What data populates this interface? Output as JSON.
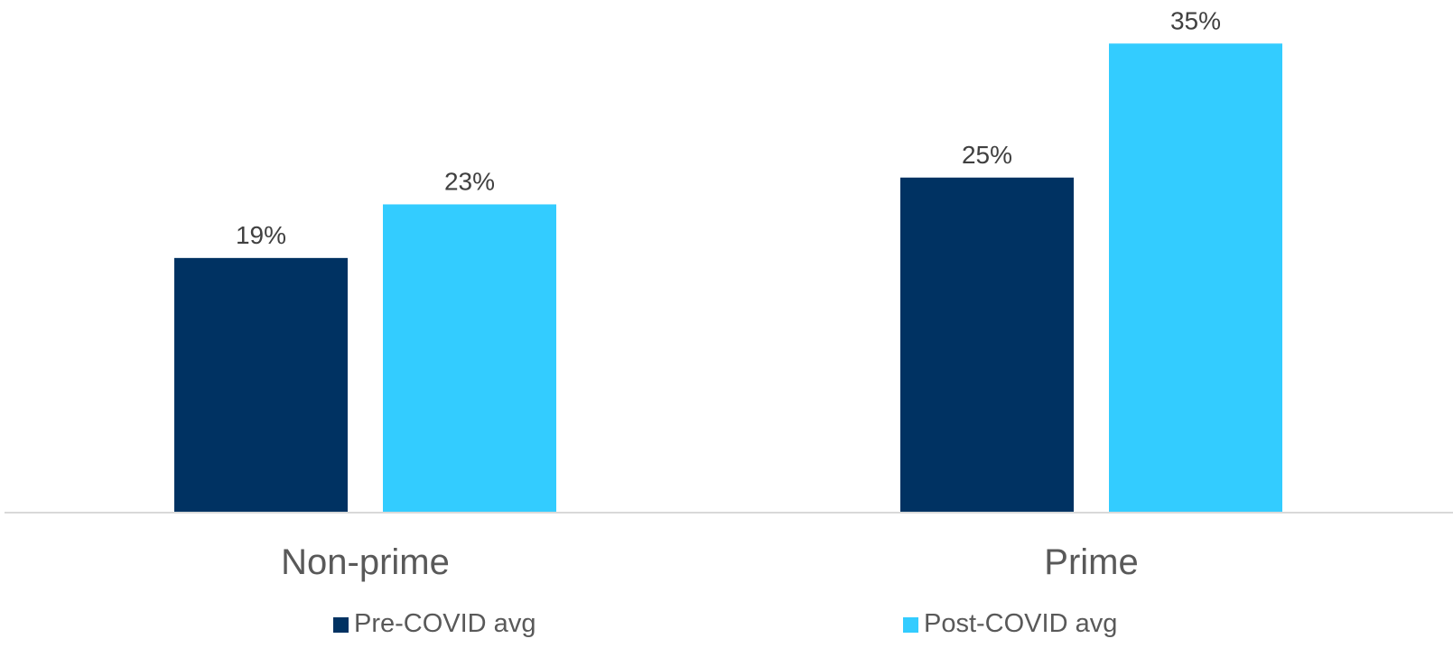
{
  "chart_data": {
    "type": "bar",
    "categories": [
      "Non-prime",
      "Prime"
    ],
    "series": [
      {
        "name": "Pre-COVID avg",
        "values": [
          19,
          25
        ],
        "color": "#003262"
      },
      {
        "name": "Post-COVID avg",
        "values": [
          23,
          35
        ],
        "color": "#33CCFF"
      }
    ],
    "data_labels": [
      [
        "19%",
        "25%"
      ],
      [
        "23%",
        "35%"
      ]
    ],
    "value_suffix": "%",
    "ylim": [
      0,
      38
    ],
    "grid": false,
    "legend_position": "bottom",
    "axis_color": "#D9D9D9",
    "label_color": "#404040",
    "category_label_color": "#595959"
  }
}
